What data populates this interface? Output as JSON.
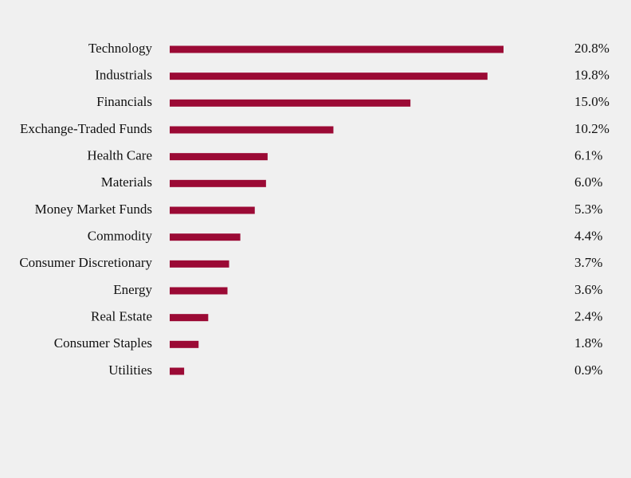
{
  "chart_data": {
    "type": "bar",
    "orientation": "horizontal",
    "color": "#9b0a35",
    "categories": [
      "Technology",
      "Industrials",
      "Financials",
      "Exchange-Traded Funds",
      "Health Care",
      "Materials",
      "Money Market Funds",
      "Commodity",
      "Consumer Discretionary",
      "Energy",
      "Real Estate",
      "Consumer Staples",
      "Utilities"
    ],
    "values": [
      20.8,
      19.8,
      15.0,
      10.2,
      6.1,
      6.0,
      5.3,
      4.4,
      3.7,
      3.6,
      2.4,
      1.8,
      0.9
    ],
    "value_labels": [
      "20.8%",
      "19.8%",
      "15.0%",
      "10.2%",
      "6.1%",
      "6.0%",
      "5.3%",
      "4.4%",
      "3.7%",
      "3.6%",
      "2.4%",
      "1.8%",
      "0.9%"
    ]
  }
}
